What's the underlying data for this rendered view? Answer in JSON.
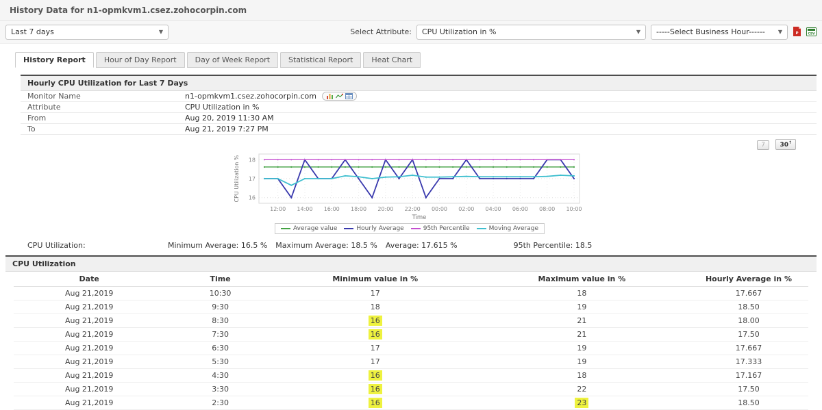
{
  "header": {
    "title": "History Data for n1-opmkvm1.csez.zohocorpin.com"
  },
  "toolbar": {
    "period_select": "Last 7 days",
    "attribute_label": "Select Attribute:",
    "attribute_select": "CPU Utilization in %",
    "business_hour_select": "-----Select Business Hour------",
    "export_icons": [
      "pdf-export-icon",
      "csv-export-icon"
    ]
  },
  "tabs": [
    {
      "label": "History Report",
      "active": true
    },
    {
      "label": "Hour of Day Report",
      "active": false
    },
    {
      "label": "Day of Week Report",
      "active": false
    },
    {
      "label": "Statistical Report",
      "active": false
    },
    {
      "label": "Heat Chart",
      "active": false
    }
  ],
  "report_info": {
    "section_title": "Hourly CPU Utilization for Last 7 Days",
    "rows": [
      {
        "label": "Monitor Name",
        "value": "n1-opmkvm1.csez.zohocorpin.com",
        "has_icons": true
      },
      {
        "label": "Attribute",
        "value": "CPU Utilization in %",
        "has_icons": false
      },
      {
        "label": "From",
        "value": "Aug 20, 2019 11:30 AM",
        "has_icons": false
      },
      {
        "label": "To",
        "value": "Aug 21, 2019 7:27 PM",
        "has_icons": false
      }
    ],
    "monitor_icon_names": [
      "bar-chart-icon",
      "line-chart-icon",
      "table-icon"
    ]
  },
  "chart_controls": {
    "button_7": "7",
    "button_30": "30",
    "button_30_arrow": "↑"
  },
  "chart_data": {
    "type": "line",
    "title": "",
    "xlabel": "Time",
    "ylabel": "CPU Utilization %",
    "ylim": [
      15.7,
      18.3
    ],
    "yticks": [
      16,
      17,
      18
    ],
    "grid": true,
    "legend_position": "bottom",
    "x": [
      "11:00",
      "12:00",
      "13:00",
      "14:00",
      "15:00",
      "16:00",
      "17:00",
      "18:00",
      "19:00",
      "20:00",
      "21:00",
      "22:00",
      "23:00",
      "00:00",
      "01:00",
      "02:00",
      "03:00",
      "04:00",
      "05:00",
      "06:00",
      "07:00",
      "08:00",
      "09:00",
      "10:00"
    ],
    "xtick_every": 2,
    "series": [
      {
        "name": "Average value",
        "color": "#44a244",
        "constant": 17.615
      },
      {
        "name": "Hourly Average",
        "color": "#3939ad",
        "values": [
          17,
          17,
          16,
          18,
          17,
          17,
          18,
          17,
          16,
          18,
          17,
          18,
          16,
          17,
          17,
          18,
          17,
          17,
          17,
          17,
          17,
          18,
          18,
          17
        ]
      },
      {
        "name": "95th Percentile",
        "color": "#c44fd0",
        "constant": 18
      },
      {
        "name": "Moving Average",
        "color": "#3fbfcf",
        "values": [
          17,
          17,
          16.65,
          17,
          17,
          17,
          17.15,
          17.1,
          17,
          17.08,
          17.1,
          17.18,
          17.08,
          17.08,
          17.1,
          17.12,
          17.1,
          17.1,
          17.1,
          17.1,
          17.1,
          17.12,
          17.18,
          17.15
        ]
      }
    ]
  },
  "summary": {
    "label": "CPU Utilization:",
    "stats": [
      {
        "label": "Minimum Average:",
        "value": "16.5",
        "unit": "%"
      },
      {
        "label": "Maximum Average:",
        "value": "18.5",
        "unit": "%"
      },
      {
        "label": "Average:",
        "value": "17.615",
        "unit": "%"
      },
      {
        "label": "95th Percentile:",
        "value": "18.5",
        "unit": ""
      }
    ]
  },
  "data_table": {
    "section_title": "CPU Utilization",
    "columns": [
      "Date",
      "Time",
      "Minimum value in %",
      "Maximum value in %",
      "Hourly Average in %"
    ],
    "highlight_color": "#eef23f",
    "rows": [
      {
        "date": "Aug 21,2019",
        "time": "10:30",
        "min": "17",
        "min_highlight": false,
        "max": "18",
        "max_highlight": false,
        "avg": "17.667"
      },
      {
        "date": "Aug 21,2019",
        "time": "9:30",
        "min": "18",
        "min_highlight": false,
        "max": "19",
        "max_highlight": false,
        "avg": "18.50"
      },
      {
        "date": "Aug 21,2019",
        "time": "8:30",
        "min": "16",
        "min_highlight": true,
        "max": "21",
        "max_highlight": false,
        "avg": "18.00"
      },
      {
        "date": "Aug 21,2019",
        "time": "7:30",
        "min": "16",
        "min_highlight": true,
        "max": "21",
        "max_highlight": false,
        "avg": "17.50"
      },
      {
        "date": "Aug 21,2019",
        "time": "6:30",
        "min": "17",
        "min_highlight": false,
        "max": "19",
        "max_highlight": false,
        "avg": "17.667"
      },
      {
        "date": "Aug 21,2019",
        "time": "5:30",
        "min": "17",
        "min_highlight": false,
        "max": "19",
        "max_highlight": false,
        "avg": "17.333"
      },
      {
        "date": "Aug 21,2019",
        "time": "4:30",
        "min": "16",
        "min_highlight": true,
        "max": "18",
        "max_highlight": false,
        "avg": "17.167"
      },
      {
        "date": "Aug 21,2019",
        "time": "3:30",
        "min": "16",
        "min_highlight": true,
        "max": "22",
        "max_highlight": false,
        "avg": "17.50"
      },
      {
        "date": "Aug 21,2019",
        "time": "2:30",
        "min": "16",
        "min_highlight": true,
        "max": "23",
        "max_highlight": true,
        "avg": "18.50"
      }
    ]
  }
}
